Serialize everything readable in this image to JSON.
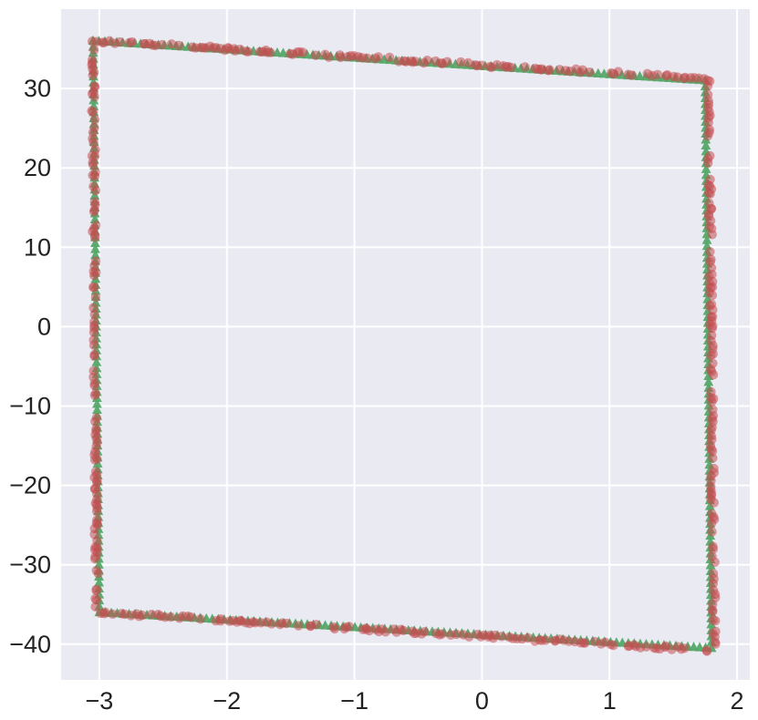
{
  "chart_data": {
    "type": "scatter",
    "title": "",
    "xlabel": "",
    "ylabel": "",
    "xlim": [
      -3.3,
      2.1
    ],
    "ylim": [
      -44.5,
      40.0
    ],
    "grid": true,
    "x_ticks": [
      -3,
      -2,
      -1,
      0,
      1,
      2
    ],
    "y_ticks": [
      -40,
      -30,
      -20,
      -10,
      0,
      10,
      20,
      30
    ],
    "x_tick_labels": [
      "−3",
      "−2",
      "−1",
      "0",
      "1",
      "2"
    ],
    "y_tick_labels": [
      "−40",
      "−30",
      "−20",
      "−10",
      "0",
      "10",
      "20",
      "30"
    ],
    "colors": {
      "background": "#eaeaf2",
      "grid": "#ffffff",
      "series_red": "#c44e52",
      "series_green": "#55a868"
    },
    "series": [
      {
        "marker": "triangle",
        "color": "#55a868",
        "alpha": 0.95,
        "shape": "closed quadrilateral",
        "vertices": [
          [
            -3.05,
            36.0
          ],
          [
            1.75,
            31.0
          ],
          [
            1.8,
            -40.5
          ],
          [
            -3.0,
            -36.0
          ]
        ]
      },
      {
        "marker": "circle",
        "color": "#c44e52",
        "alpha": 0.55,
        "shape": "noisy quadrilateral outline",
        "vertices": [
          [
            -3.05,
            36.0
          ],
          [
            1.78,
            31.2
          ],
          [
            1.82,
            -40.8
          ],
          [
            -3.02,
            -36.0
          ]
        ]
      }
    ]
  }
}
